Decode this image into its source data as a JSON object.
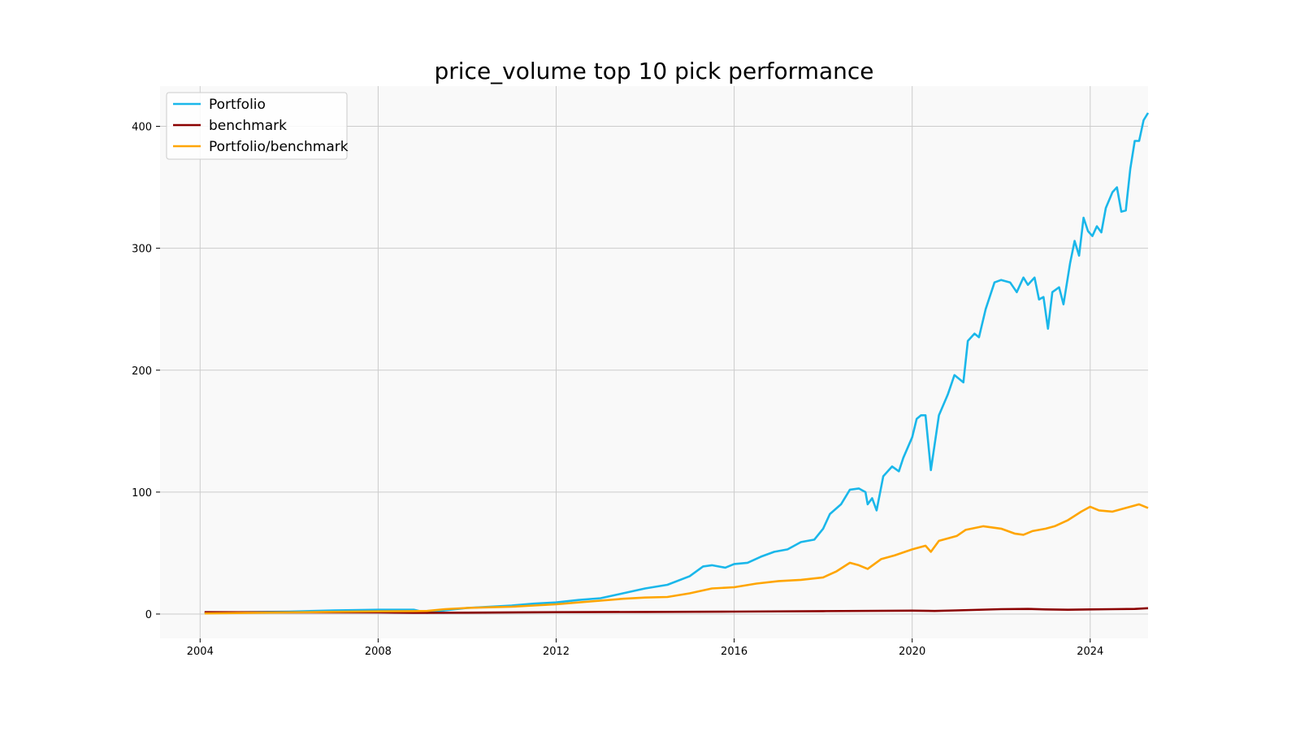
{
  "chart_data": {
    "type": "line",
    "title": "price_volume top 10 pick performance",
    "xlabel": "",
    "ylabel": "",
    "xlim": [
      2003.1,
      2025.3
    ],
    "ylim": [
      -20,
      433
    ],
    "x_ticks": [
      2004,
      2008,
      2012,
      2016,
      2020,
      2024
    ],
    "y_ticks": [
      0,
      100,
      200,
      300,
      400
    ],
    "grid": true,
    "legend_position": "top-left",
    "series": [
      {
        "name": "Portfolio",
        "color": "#1ab7ea",
        "points": [
          [
            2004.1,
            1
          ],
          [
            2005.0,
            1.5
          ],
          [
            2006.0,
            2
          ],
          [
            2007.0,
            3
          ],
          [
            2008.0,
            3.5
          ],
          [
            2008.8,
            3.5
          ],
          [
            2009.1,
            1
          ],
          [
            2009.5,
            3
          ],
          [
            2010.0,
            5
          ],
          [
            2010.5,
            6
          ],
          [
            2011.0,
            7
          ],
          [
            2011.5,
            8.5
          ],
          [
            2012.0,
            9.5
          ],
          [
            2012.5,
            11.5
          ],
          [
            2013.0,
            13
          ],
          [
            2013.5,
            17
          ],
          [
            2014.0,
            21
          ],
          [
            2014.5,
            24
          ],
          [
            2015.0,
            31
          ],
          [
            2015.3,
            39
          ],
          [
            2015.5,
            40
          ],
          [
            2015.8,
            38
          ],
          [
            2016.0,
            41
          ],
          [
            2016.3,
            42
          ],
          [
            2016.6,
            47
          ],
          [
            2016.9,
            51
          ],
          [
            2017.2,
            53
          ],
          [
            2017.5,
            59
          ],
          [
            2017.8,
            61
          ],
          [
            2018.0,
            70
          ],
          [
            2018.15,
            82
          ],
          [
            2018.4,
            90
          ],
          [
            2018.6,
            102
          ],
          [
            2018.8,
            103
          ],
          [
            2018.95,
            100
          ],
          [
            2019.0,
            90
          ],
          [
            2019.1,
            95
          ],
          [
            2019.2,
            85
          ],
          [
            2019.35,
            113
          ],
          [
            2019.55,
            121
          ],
          [
            2019.7,
            117
          ],
          [
            2019.8,
            128
          ],
          [
            2020.0,
            145
          ],
          [
            2020.1,
            160
          ],
          [
            2020.2,
            163
          ],
          [
            2020.3,
            163
          ],
          [
            2020.42,
            118
          ],
          [
            2020.6,
            163
          ],
          [
            2020.8,
            180
          ],
          [
            2020.95,
            196
          ],
          [
            2021.15,
            190
          ],
          [
            2021.25,
            224
          ],
          [
            2021.4,
            230
          ],
          [
            2021.5,
            227
          ],
          [
            2021.65,
            250
          ],
          [
            2021.85,
            272
          ],
          [
            2022.0,
            274
          ],
          [
            2022.2,
            272
          ],
          [
            2022.35,
            264
          ],
          [
            2022.5,
            276
          ],
          [
            2022.6,
            270
          ],
          [
            2022.75,
            276
          ],
          [
            2022.85,
            258
          ],
          [
            2022.95,
            260
          ],
          [
            2023.05,
            234
          ],
          [
            2023.15,
            264
          ],
          [
            2023.3,
            268
          ],
          [
            2023.4,
            254
          ],
          [
            2023.55,
            288
          ],
          [
            2023.65,
            306
          ],
          [
            2023.75,
            294
          ],
          [
            2023.85,
            325
          ],
          [
            2023.95,
            314
          ],
          [
            2024.05,
            310
          ],
          [
            2024.15,
            318
          ],
          [
            2024.25,
            313
          ],
          [
            2024.35,
            333
          ],
          [
            2024.5,
            346
          ],
          [
            2024.6,
            350
          ],
          [
            2024.7,
            330
          ],
          [
            2024.8,
            331
          ],
          [
            2024.9,
            365
          ],
          [
            2025.0,
            388
          ],
          [
            2025.1,
            388
          ],
          [
            2025.2,
            405
          ],
          [
            2025.3,
            411
          ]
        ]
      },
      {
        "name": "benchmark",
        "color": "#8b0000",
        "points": [
          [
            2004.1,
            1.5
          ],
          [
            2006.0,
            1.4
          ],
          [
            2008.0,
            1.3
          ],
          [
            2009.0,
            1.0
          ],
          [
            2010.0,
            1.1
          ],
          [
            2012.0,
            1.5
          ],
          [
            2014.0,
            1.7
          ],
          [
            2016.0,
            2.0
          ],
          [
            2018.0,
            2.4
          ],
          [
            2020.0,
            2.8
          ],
          [
            2020.5,
            2.5
          ],
          [
            2021.0,
            3.0
          ],
          [
            2022.0,
            4.0
          ],
          [
            2022.6,
            4.2
          ],
          [
            2023.0,
            3.8
          ],
          [
            2023.5,
            3.5
          ],
          [
            2024.0,
            3.8
          ],
          [
            2024.5,
            4.0
          ],
          [
            2025.0,
            4.2
          ],
          [
            2025.3,
            4.8
          ]
        ]
      },
      {
        "name": "Portfolio/benchmark",
        "color": "#ffa500",
        "points": [
          [
            2004.1,
            0.5
          ],
          [
            2005.0,
            0.9
          ],
          [
            2006.0,
            1.3
          ],
          [
            2007.0,
            1.8
          ],
          [
            2008.0,
            2.2
          ],
          [
            2008.8,
            2.4
          ],
          [
            2009.1,
            2.5
          ],
          [
            2009.5,
            4
          ],
          [
            2010.0,
            5
          ],
          [
            2010.5,
            5.5
          ],
          [
            2011.0,
            6
          ],
          [
            2011.5,
            7
          ],
          [
            2012.0,
            8
          ],
          [
            2012.5,
            9.5
          ],
          [
            2013.0,
            11
          ],
          [
            2013.5,
            12.5
          ],
          [
            2014.0,
            13.5
          ],
          [
            2014.5,
            14
          ],
          [
            2015.0,
            17
          ],
          [
            2015.5,
            21
          ],
          [
            2016.0,
            22
          ],
          [
            2016.5,
            25
          ],
          [
            2017.0,
            27
          ],
          [
            2017.5,
            28
          ],
          [
            2018.0,
            30
          ],
          [
            2018.3,
            35
          ],
          [
            2018.6,
            42
          ],
          [
            2018.8,
            40
          ],
          [
            2019.0,
            37
          ],
          [
            2019.3,
            45
          ],
          [
            2019.6,
            48
          ],
          [
            2020.0,
            53
          ],
          [
            2020.3,
            56
          ],
          [
            2020.42,
            51
          ],
          [
            2020.6,
            60
          ],
          [
            2021.0,
            64
          ],
          [
            2021.2,
            69
          ],
          [
            2021.6,
            72
          ],
          [
            2022.0,
            70
          ],
          [
            2022.3,
            66
          ],
          [
            2022.5,
            65
          ],
          [
            2022.7,
            68
          ],
          [
            2023.0,
            70
          ],
          [
            2023.2,
            72
          ],
          [
            2023.5,
            77
          ],
          [
            2023.8,
            84
          ],
          [
            2024.0,
            88
          ],
          [
            2024.2,
            85
          ],
          [
            2024.5,
            84
          ],
          [
            2024.8,
            87
          ],
          [
            2025.1,
            90
          ],
          [
            2025.3,
            87
          ]
        ]
      }
    ]
  }
}
